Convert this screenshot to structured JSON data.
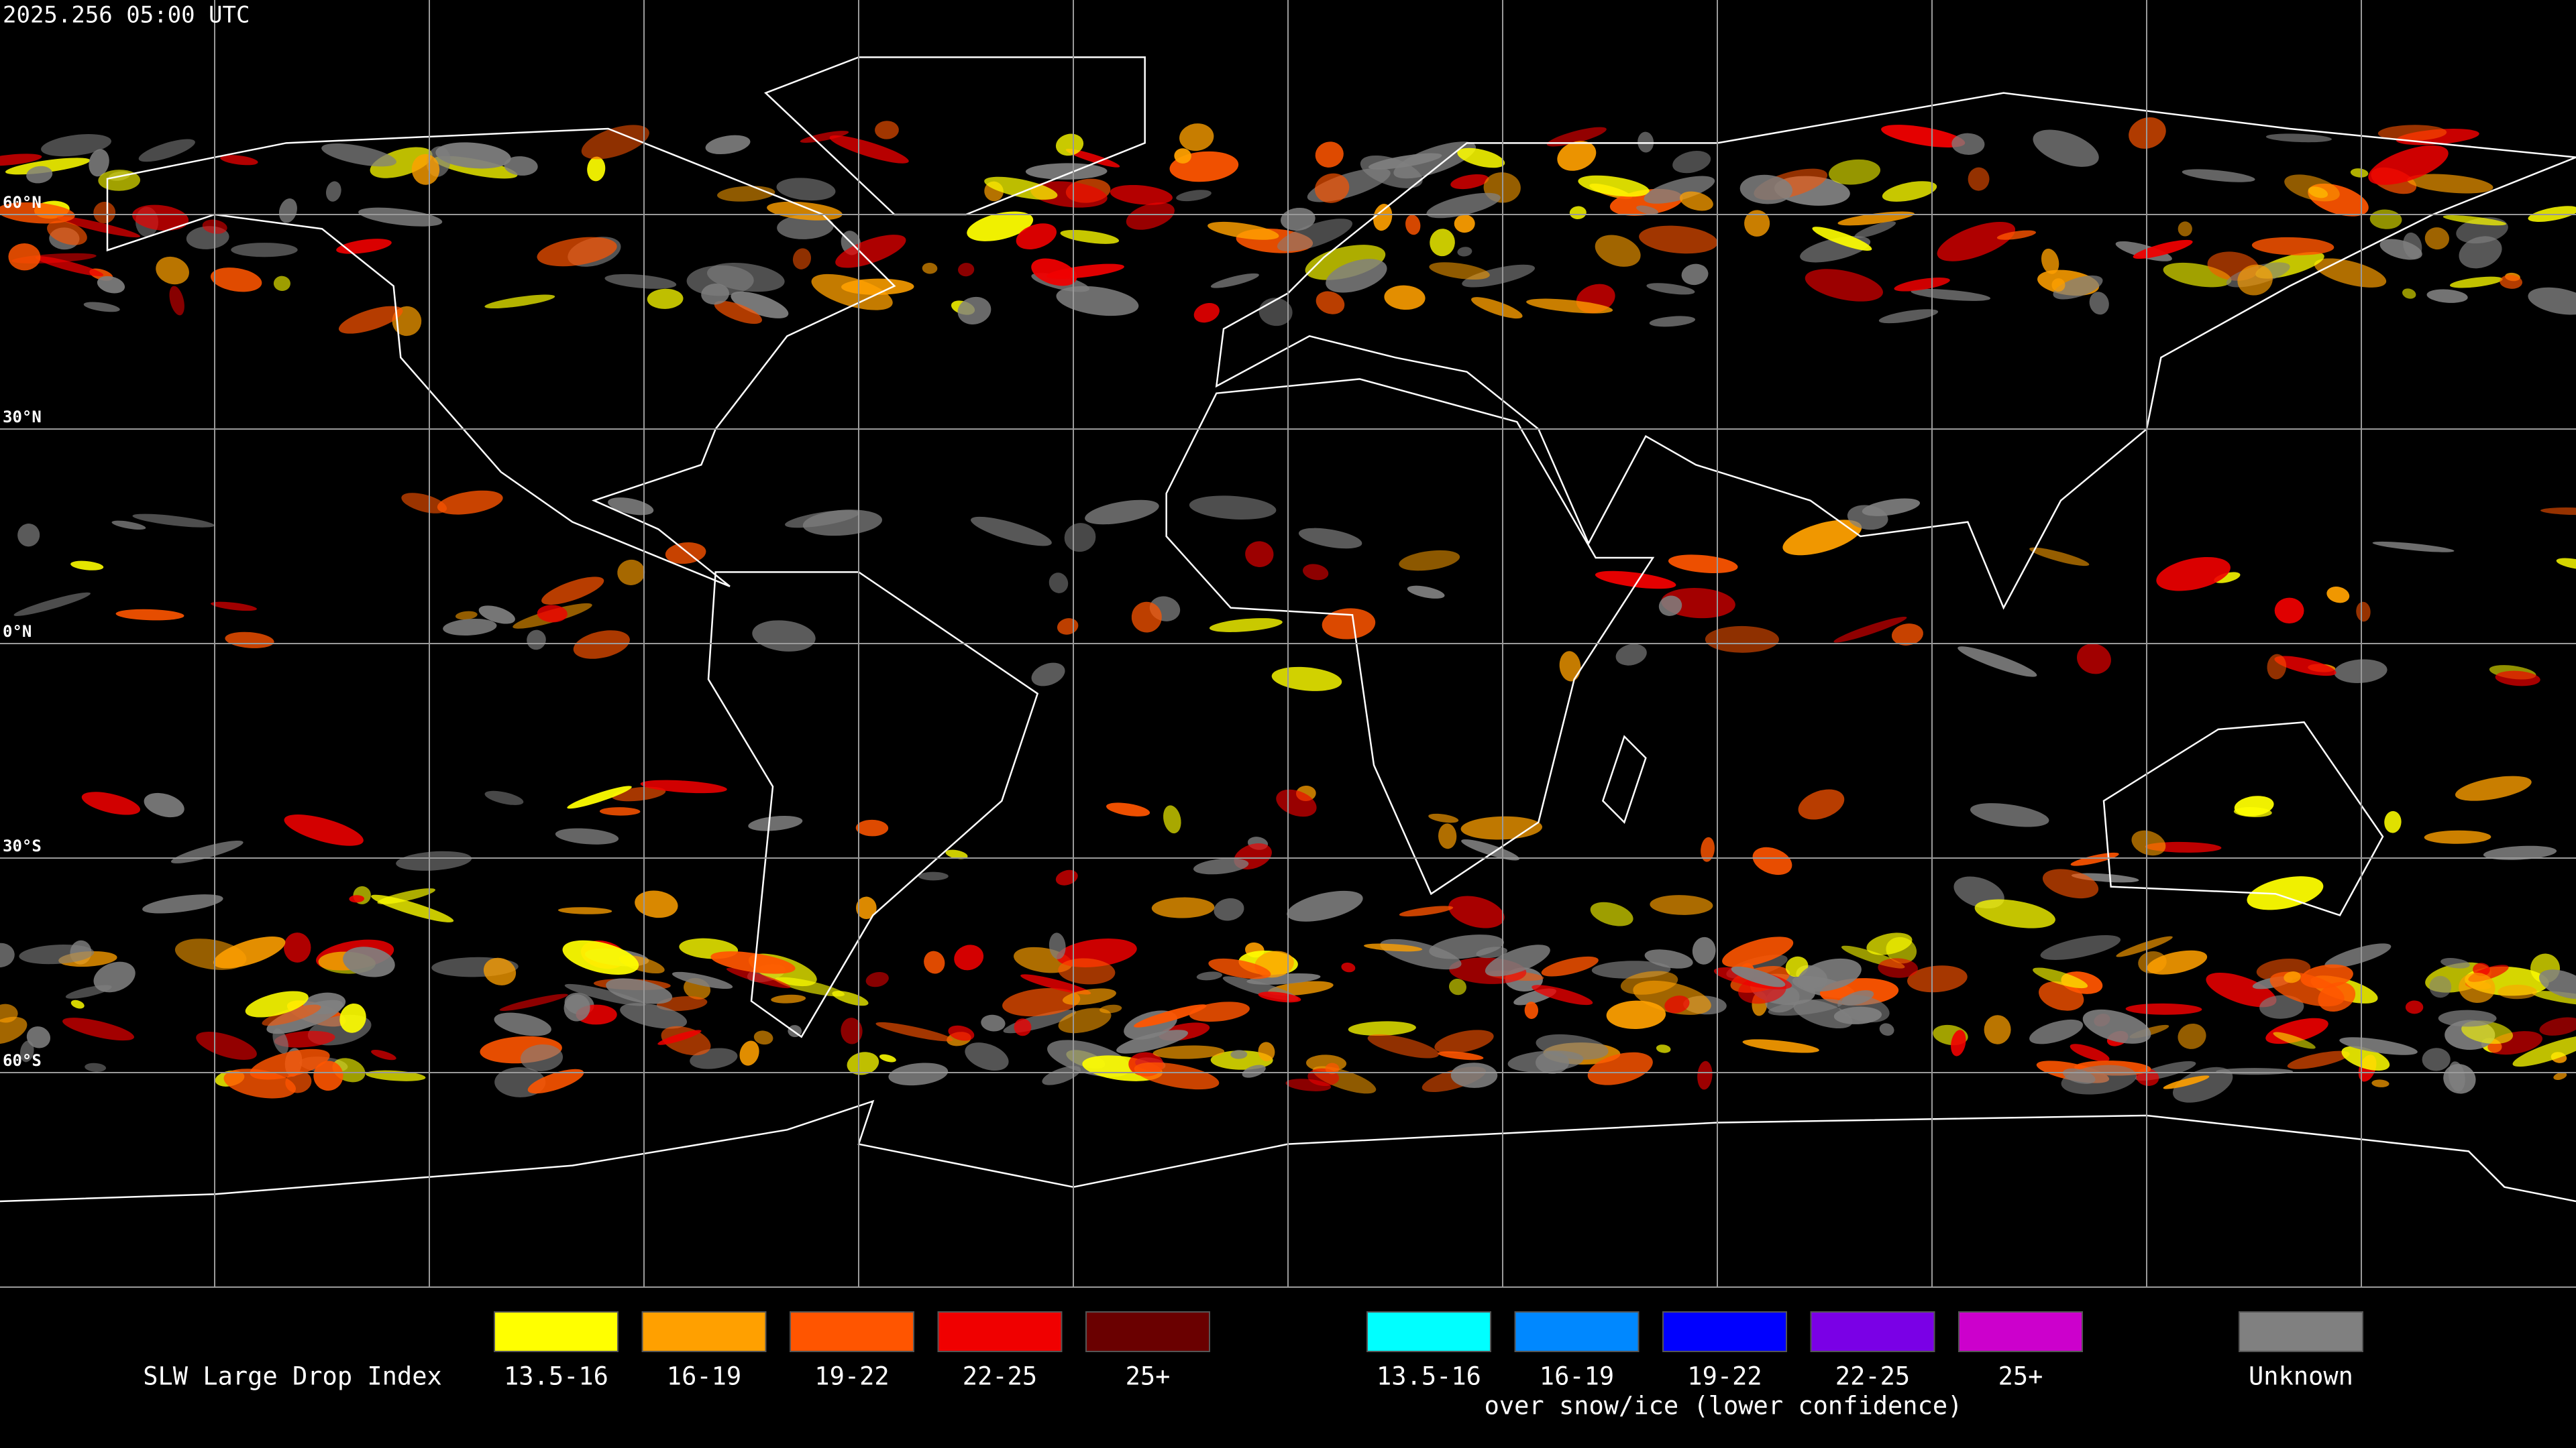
{
  "header": {
    "timestamp": "2025.256 05:00 UTC"
  },
  "grid": {
    "latitude_labels": [
      "60°N",
      "30°N",
      "0°N",
      "30°S",
      "60°S"
    ]
  },
  "legend": {
    "title": "SLW Large Drop Index",
    "items": [
      {
        "label": "13.5-16",
        "color": "#ffff00"
      },
      {
        "label": "16-19",
        "color": "#ffa000"
      },
      {
        "label": "19-22",
        "color": "#ff5500"
      },
      {
        "label": "22-25",
        "color": "#f00000"
      },
      {
        "label": "25+",
        "color": "#6a0000"
      }
    ],
    "snow_ice_items": [
      {
        "label": "13.5-16",
        "color": "#00ffff"
      },
      {
        "label": "16-19",
        "color": "#0088ff"
      },
      {
        "label": "19-22",
        "color": "#0000ff"
      },
      {
        "label": "22-25",
        "color": "#7a00e6"
      },
      {
        "label": "25+",
        "color": "#cc00cc"
      }
    ],
    "snow_ice_caption": "over snow/ice (lower confidence)",
    "unknown": {
      "label": "Unknown",
      "color": "#808080"
    }
  }
}
